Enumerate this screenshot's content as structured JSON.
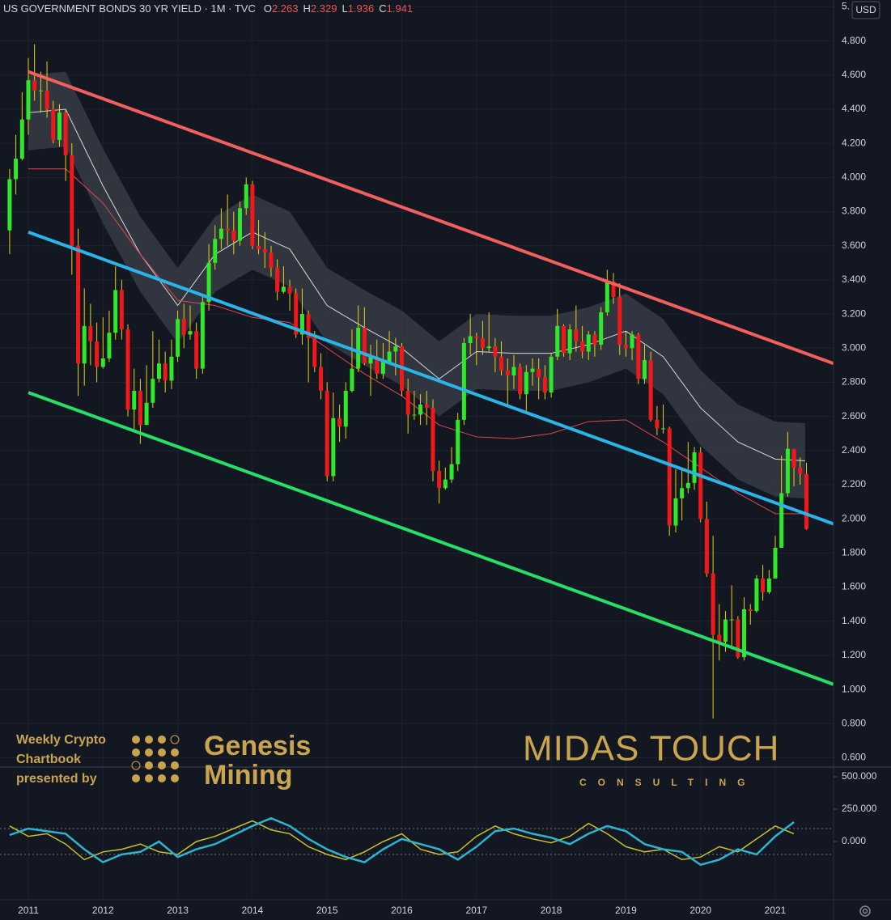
{
  "header": {
    "title": "US GOVERNMENT BONDS 30 YR YIELD · 1M · TVC",
    "labels": [
      "O",
      "H",
      "L",
      "C"
    ],
    "currency": "USD"
  },
  "watermarks": {
    "left_lines": [
      "Weekly Crypto",
      "Chartbook",
      "presented by"
    ],
    "brand_lines": [
      "Genesis",
      "Mining"
    ],
    "right_title": "MIDAS TOUCH",
    "right_subtitle": "CONSULTING"
  },
  "chart_data": {
    "type": "candlestick",
    "up_color": "#2ee82a",
    "down_color": "#f01818",
    "wick_color": "#e8d20a",
    "xlim": [
      2010.621,
      2021.78
    ],
    "xticks": [
      2011,
      2012,
      2013,
      2014,
      2015,
      2016,
      2017,
      2018,
      2019,
      2020,
      2021
    ],
    "ylim": [
      0.55,
      5.04
    ],
    "yticks": [
      {
        "value": 0.6,
        "label": "0.600"
      },
      {
        "value": 0.8,
        "label": "0.800"
      },
      {
        "value": 1.0,
        "label": "1.000"
      },
      {
        "value": 1.2,
        "label": "1.200"
      },
      {
        "value": 1.4,
        "label": "1.400"
      },
      {
        "value": 1.6,
        "label": "1.600"
      },
      {
        "value": 1.8,
        "label": "1.800"
      },
      {
        "value": 2.0,
        "label": "2.000"
      },
      {
        "value": 2.2,
        "label": "2.200"
      },
      {
        "value": 2.4,
        "label": "2.400"
      },
      {
        "value": 2.6,
        "label": "2.600"
      },
      {
        "value": 2.8,
        "label": "2.800"
      },
      {
        "value": 3.0,
        "label": "3.000"
      },
      {
        "value": 3.2,
        "label": "3.200"
      },
      {
        "value": 3.4,
        "label": "3.400"
      },
      {
        "value": 3.6,
        "label": "3.600"
      },
      {
        "value": 3.8,
        "label": "3.800"
      },
      {
        "value": 4.0,
        "label": "4.000"
      },
      {
        "value": 4.2,
        "label": "4.200"
      },
      {
        "value": 4.4,
        "label": "4.400"
      },
      {
        "value": 4.6,
        "label": "4.600"
      },
      {
        "value": 4.8,
        "label": "4.800"
      },
      {
        "value": 5.0,
        "label": "5."
      }
    ],
    "grid": true,
    "candles": {
      "x": [
        2010.75,
        2010.833,
        2010.917,
        2011,
        2011.083,
        2011.167,
        2011.25,
        2011.333,
        2011.417,
        2011.5,
        2011.583,
        2011.667,
        2011.75,
        2011.833,
        2011.917,
        2012,
        2012.083,
        2012.167,
        2012.25,
        2012.333,
        2012.417,
        2012.5,
        2012.583,
        2012.667,
        2012.75,
        2012.833,
        2012.917,
        2013,
        2013.083,
        2013.167,
        2013.25,
        2013.333,
        2013.417,
        2013.5,
        2013.583,
        2013.667,
        2013.75,
        2013.833,
        2013.917,
        2014,
        2014.083,
        2014.167,
        2014.25,
        2014.333,
        2014.417,
        2014.5,
        2014.583,
        2014.667,
        2014.75,
        2014.833,
        2014.917,
        2015,
        2015.083,
        2015.167,
        2015.25,
        2015.333,
        2015.417,
        2015.5,
        2015.583,
        2015.667,
        2015.75,
        2015.833,
        2015.917,
        2016,
        2016.083,
        2016.167,
        2016.25,
        2016.333,
        2016.417,
        2016.5,
        2016.583,
        2016.667,
        2016.75,
        2016.833,
        2016.917,
        2017,
        2017.083,
        2017.167,
        2017.25,
        2017.333,
        2017.417,
        2017.5,
        2017.583,
        2017.667,
        2017.75,
        2017.833,
        2017.917,
        2018,
        2018.083,
        2018.167,
        2018.25,
        2018.333,
        2018.417,
        2018.5,
        2018.583,
        2018.667,
        2018.75,
        2018.833,
        2018.917,
        2019,
        2019.083,
        2019.167,
        2019.25,
        2019.333,
        2019.417,
        2019.5,
        2019.583,
        2019.667,
        2019.75,
        2019.833,
        2019.917,
        2020,
        2020.083,
        2020.167,
        2020.25,
        2020.333,
        2020.417,
        2020.5,
        2020.583,
        2020.667,
        2020.75,
        2020.833,
        2020.917,
        2021,
        2021.083,
        2021.167,
        2021.25,
        2021.333,
        2021.417
      ],
      "open": [
        3.69,
        3.99,
        4.11,
        4.34,
        4.57,
        4.51,
        4.51,
        4.4,
        4.22,
        4.38,
        4.13,
        3.6,
        2.91,
        3.13,
        3.04,
        2.89,
        2.94,
        3.09,
        3.34,
        3.11,
        2.64,
        2.75,
        2.55,
        2.68,
        2.82,
        2.91,
        2.81,
        2.95,
        3.17,
        3.08,
        3.1,
        2.88,
        3.27,
        3.5,
        3.64,
        3.7,
        3.69,
        3.63,
        3.82,
        3.96,
        3.6,
        3.58,
        3.56,
        3.47,
        3.33,
        3.36,
        3.32,
        3.08,
        3.2,
        3.06,
        2.89,
        2.75,
        2.25,
        2.59,
        2.54,
        2.75,
        2.88,
        3.12,
        2.91,
        2.95,
        2.85,
        2.92,
        2.98,
        3.01,
        2.75,
        2.61,
        2.61,
        2.67,
        2.65,
        2.28,
        2.18,
        2.23,
        2.32,
        2.58,
        3.03,
        3.07,
        3.06,
        3.0,
        3.01,
        2.95,
        2.87,
        2.84,
        2.89,
        2.73,
        2.86,
        2.88,
        2.83,
        2.74,
        2.95,
        3.13,
        2.97,
        3.11,
        3.04,
        2.98,
        3.08,
        3.02,
        3.21,
        3.39,
        3.3,
        3.02,
        3.0,
        3.08,
        2.82,
        2.93,
        2.58,
        2.53,
        2.53,
        1.96,
        2.12,
        2.18,
        2.21,
        2.39,
        2.0,
        1.68,
        1.32,
        1.28,
        1.41,
        1.41,
        1.19,
        1.47,
        1.46,
        1.65,
        1.57,
        1.65,
        1.83,
        2.15,
        2.41,
        2.3,
        2.263
      ],
      "high": [
        4.05,
        4.25,
        4.5,
        4.7,
        4.78,
        4.62,
        4.68,
        4.45,
        4.43,
        4.4,
        4.2,
        3.7,
        3.35,
        3.26,
        3.15,
        3.18,
        3.22,
        3.48,
        3.4,
        3.14,
        2.88,
        2.82,
        2.9,
        3.1,
        3.05,
        2.98,
        3.05,
        3.22,
        3.26,
        3.25,
        3.15,
        3.3,
        3.61,
        3.72,
        3.82,
        3.9,
        3.8,
        3.86,
        4.0,
        3.98,
        3.75,
        3.68,
        3.6,
        3.52,
        3.48,
        3.4,
        3.35,
        3.35,
        3.22,
        3.1,
        2.97,
        2.8,
        2.74,
        2.67,
        2.8,
        3.11,
        3.25,
        3.24,
        3.02,
        3.05,
        3.03,
        3.1,
        3.06,
        3.03,
        2.82,
        2.75,
        2.73,
        2.75,
        2.7,
        2.34,
        2.3,
        2.42,
        2.62,
        3.06,
        3.2,
        3.09,
        3.16,
        3.21,
        3.06,
        3.04,
        2.94,
        2.96,
        2.91,
        2.9,
        2.94,
        2.94,
        2.9,
        2.97,
        3.23,
        3.14,
        3.14,
        3.25,
        3.13,
        3.1,
        3.1,
        3.24,
        3.46,
        3.44,
        3.38,
        3.1,
        3.1,
        3.09,
        3.02,
        2.98,
        2.66,
        2.67,
        2.54,
        2.29,
        2.3,
        2.45,
        2.42,
        2.42,
        2.1,
        1.9,
        1.5,
        1.46,
        1.61,
        1.43,
        1.54,
        1.5,
        1.67,
        1.73,
        1.7,
        1.9,
        2.37,
        2.51,
        2.41,
        2.36,
        2.329
      ],
      "low": [
        3.55,
        3.9,
        4.1,
        4.25,
        4.45,
        4.38,
        4.35,
        4.2,
        4.18,
        3.98,
        3.43,
        2.72,
        2.78,
        2.9,
        2.8,
        2.88,
        2.92,
        3.05,
        3.05,
        2.6,
        2.52,
        2.44,
        2.55,
        2.65,
        2.8,
        2.74,
        2.76,
        2.92,
        3.0,
        3.05,
        2.82,
        2.85,
        3.22,
        3.46,
        3.58,
        3.6,
        3.55,
        3.6,
        3.78,
        3.58,
        3.55,
        3.47,
        3.42,
        3.28,
        3.32,
        3.22,
        3.06,
        3.02,
        2.8,
        2.86,
        2.7,
        2.22,
        2.22,
        2.45,
        2.47,
        2.74,
        2.86,
        2.9,
        2.72,
        2.82,
        2.82,
        2.92,
        2.84,
        2.72,
        2.5,
        2.58,
        2.55,
        2.55,
        2.22,
        2.09,
        2.17,
        2.21,
        2.28,
        2.55,
        2.96,
        2.9,
        2.96,
        2.98,
        2.86,
        2.84,
        2.67,
        2.76,
        2.7,
        2.62,
        2.78,
        2.7,
        2.7,
        2.71,
        2.93,
        2.95,
        2.93,
        2.98,
        2.94,
        2.93,
        2.95,
        2.99,
        3.19,
        3.26,
        2.96,
        2.95,
        2.93,
        2.79,
        2.79,
        2.57,
        2.49,
        2.5,
        1.9,
        1.92,
        1.99,
        2.15,
        2.17,
        1.98,
        1.66,
        0.83,
        1.17,
        1.22,
        1.25,
        1.18,
        1.17,
        1.38,
        1.45,
        1.52,
        1.56,
        1.65,
        1.83,
        2.13,
        2.19,
        2.2,
        1.936
      ],
      "close": [
        3.99,
        4.11,
        4.34,
        4.57,
        4.51,
        4.51,
        4.4,
        4.22,
        4.38,
        4.13,
        3.6,
        2.91,
        3.13,
        3.04,
        2.89,
        2.94,
        3.09,
        3.34,
        3.11,
        2.64,
        2.75,
        2.55,
        2.68,
        2.82,
        2.91,
        2.81,
        2.95,
        3.17,
        3.08,
        3.1,
        2.88,
        3.27,
        3.5,
        3.64,
        3.7,
        3.69,
        3.63,
        3.82,
        3.96,
        3.6,
        3.58,
        3.56,
        3.47,
        3.33,
        3.36,
        3.32,
        3.08,
        3.2,
        3.06,
        2.89,
        2.75,
        2.25,
        2.59,
        2.54,
        2.75,
        2.88,
        3.12,
        2.91,
        2.95,
        2.85,
        2.92,
        2.98,
        3.01,
        2.75,
        2.61,
        2.61,
        2.67,
        2.65,
        2.28,
        2.18,
        2.23,
        2.32,
        2.58,
        3.03,
        3.07,
        3.06,
        3.0,
        3.01,
        2.95,
        2.87,
        2.84,
        2.89,
        2.73,
        2.86,
        2.88,
        2.83,
        2.74,
        2.95,
        3.13,
        2.97,
        3.11,
        3.04,
        2.98,
        3.08,
        3.02,
        3.21,
        3.39,
        3.3,
        3.02,
        3.0,
        3.08,
        2.82,
        2.93,
        2.58,
        2.53,
        2.53,
        1.96,
        2.12,
        2.18,
        2.21,
        2.39,
        2.0,
        1.68,
        1.32,
        1.28,
        1.41,
        1.41,
        1.19,
        1.47,
        1.46,
        1.65,
        1.57,
        1.65,
        1.83,
        2.15,
        2.41,
        2.3,
        2.263,
        1.941
      ]
    },
    "overlay_x": [
      2011,
      2011.5,
      2012,
      2012.5,
      2013,
      2013.5,
      2014,
      2014.5,
      2015,
      2015.5,
      2016,
      2016.5,
      2017,
      2017.5,
      2018,
      2018.5,
      2019,
      2019.5,
      2020,
      2020.5,
      2021,
      2021.4
    ],
    "band": {
      "color": "#3a3d47",
      "upper": [
        4.6,
        4.62,
        4.17,
        3.77,
        3.47,
        3.77,
        3.9,
        3.8,
        3.47,
        3.34,
        3.22,
        3.04,
        3.2,
        3.19,
        3.19,
        3.24,
        3.32,
        3.17,
        2.87,
        2.67,
        2.57,
        2.56
      ],
      "lower": [
        4.16,
        4.18,
        3.73,
        3.33,
        3.03,
        3.33,
        3.46,
        3.36,
        3.03,
        2.9,
        2.78,
        2.6,
        2.76,
        2.75,
        2.75,
        2.8,
        2.88,
        2.73,
        2.43,
        2.23,
        2.13,
        2.12
      ]
    },
    "moving_averages": [
      {
        "color": "#d8d8d8",
        "values": [
          4.38,
          4.4,
          3.95,
          3.55,
          3.25,
          3.55,
          3.68,
          3.58,
          3.25,
          3.12,
          3.0,
          2.82,
          2.98,
          2.97,
          2.97,
          3.02,
          3.1,
          2.95,
          2.65,
          2.45,
          2.35,
          2.34
        ]
      },
      {
        "color": "#e04848",
        "values": [
          4.05,
          4.05,
          3.85,
          3.55,
          3.28,
          3.25,
          3.18,
          3.15,
          3.0,
          2.85,
          2.72,
          2.55,
          2.48,
          2.47,
          2.5,
          2.57,
          2.58,
          2.45,
          2.3,
          2.15,
          2.03,
          2.03
        ]
      }
    ],
    "trendlines": [
      {
        "color": "#f25f5c",
        "x": [
          2011.0,
          2021.78
        ],
        "y": [
          4.62,
          2.91
        ]
      },
      {
        "color": "#2ab5e8",
        "x": [
          2011.0,
          2021.78
        ],
        "y": [
          3.68,
          1.97
        ]
      },
      {
        "color": "#25df66",
        "x": [
          2011.0,
          2021.78
        ],
        "y": [
          2.74,
          1.03
        ]
      }
    ],
    "oscillator": {
      "type": "line",
      "ylim": [
        -437.5,
        562.5
      ],
      "yticks": [
        {
          "value": 500,
          "label": "500.000"
        },
        {
          "value": 250,
          "label": "250.000"
        },
        {
          "value": 0,
          "label": "0.000"
        }
      ],
      "levels": [
        100,
        -100
      ],
      "x": [
        2010.75,
        2011,
        2011.25,
        2011.5,
        2011.75,
        2012,
        2012.25,
        2012.5,
        2012.75,
        2013,
        2013.25,
        2013.5,
        2013.75,
        2014,
        2014.25,
        2014.5,
        2014.75,
        2015,
        2015.25,
        2015.5,
        2015.75,
        2016,
        2016.25,
        2016.5,
        2016.75,
        2017,
        2017.25,
        2017.5,
        2017.75,
        2018,
        2018.25,
        2018.5,
        2018.75,
        2019,
        2019.25,
        2019.5,
        2019.75,
        2020,
        2020.25,
        2020.5,
        2020.75,
        2021,
        2021.25
      ],
      "series": [
        {
          "color": "#c8c22a",
          "values": [
            120,
            40,
            60,
            -20,
            -140,
            -80,
            -60,
            -20,
            -80,
            -100,
            0,
            40,
            100,
            160,
            90,
            60,
            -40,
            -100,
            -140,
            -80,
            0,
            60,
            -60,
            -100,
            -80,
            40,
            120,
            60,
            20,
            -10,
            40,
            140,
            60,
            -40,
            -80,
            -60,
            -140,
            -120,
            -40,
            -80,
            20,
            120,
            60
          ]
        },
        {
          "color": "#2ab5d0",
          "values": [
            50,
            100,
            80,
            60,
            -60,
            -160,
            -100,
            -80,
            0,
            -120,
            -60,
            -20,
            50,
            120,
            180,
            120,
            20,
            -60,
            -120,
            -160,
            -60,
            20,
            -20,
            -60,
            -140,
            -40,
            80,
            100,
            60,
            30,
            -20,
            60,
            120,
            80,
            -20,
            -60,
            -80,
            -180,
            -140,
            -60,
            -100,
            40,
            150
          ]
        }
      ]
    }
  }
}
